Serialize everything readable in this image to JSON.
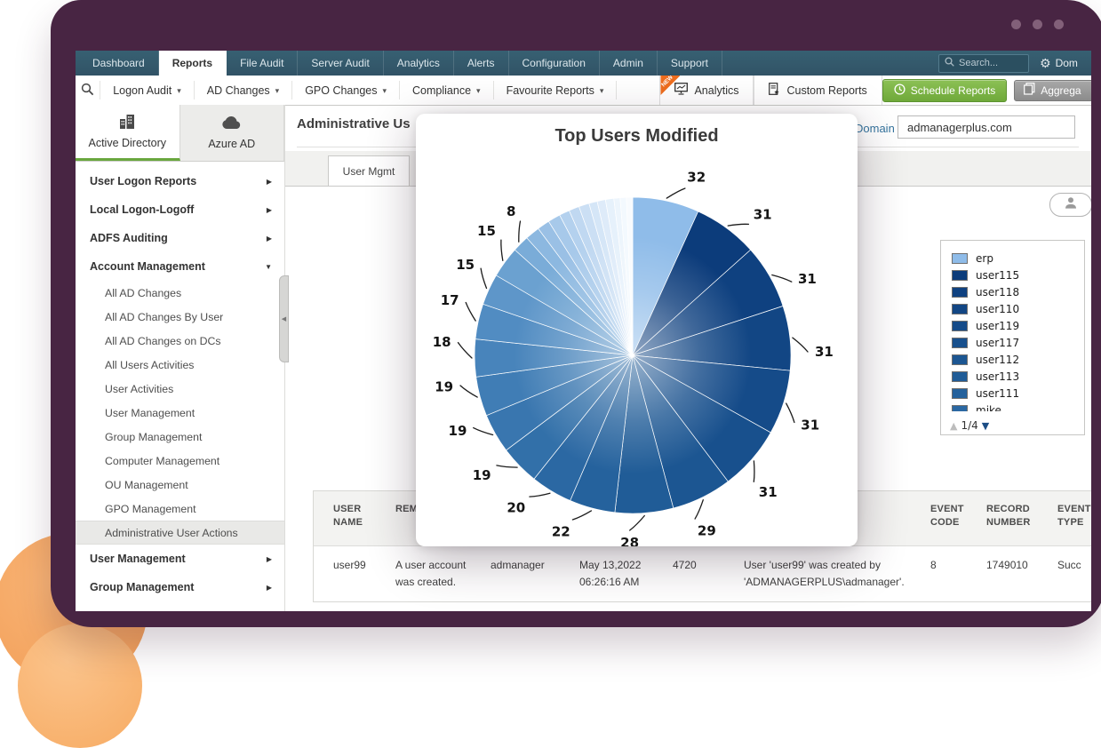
{
  "topnav": {
    "tabs": [
      "Dashboard",
      "Reports",
      "File Audit",
      "Server Audit",
      "Analytics",
      "Alerts",
      "Configuration",
      "Admin",
      "Support"
    ],
    "active_tab": "Reports",
    "search_placeholder": "Search...",
    "domain_settings_label": "Dom"
  },
  "toolbar": {
    "menus": [
      "Logon Audit",
      "AD Changes",
      "GPO Changes",
      "Compliance",
      "Favourite Reports"
    ],
    "analytics_label": "Analytics",
    "analytics_badge": "NEW",
    "custom_reports_label": "Custom Reports",
    "schedule_reports_label": "Schedule Reports",
    "aggregate_label": "Aggrega"
  },
  "sidebar": {
    "tabs": [
      {
        "label": "Active Directory",
        "active": true
      },
      {
        "label": "Azure AD",
        "active": false
      }
    ],
    "items": [
      {
        "label": "User Logon Reports",
        "type": "section",
        "arrow": "right"
      },
      {
        "label": "Local Logon-Logoff",
        "type": "section",
        "arrow": "right"
      },
      {
        "label": "ADFS Auditing",
        "type": "section",
        "arrow": "right"
      },
      {
        "label": "Account Management",
        "type": "section",
        "arrow": "down"
      },
      {
        "label": "All AD Changes",
        "type": "sub"
      },
      {
        "label": "All AD Changes By User",
        "type": "sub"
      },
      {
        "label": "All AD Changes on DCs",
        "type": "sub"
      },
      {
        "label": "All Users Activities",
        "type": "sub"
      },
      {
        "label": "User Activities",
        "type": "sub"
      },
      {
        "label": "User Management",
        "type": "sub"
      },
      {
        "label": "Group Management",
        "type": "sub"
      },
      {
        "label": "Computer Management",
        "type": "sub"
      },
      {
        "label": "OU Management",
        "type": "sub"
      },
      {
        "label": "GPO Management",
        "type": "sub"
      },
      {
        "label": "Administrative User Actions",
        "type": "sub",
        "active": true
      },
      {
        "label": "User Management",
        "type": "section",
        "arrow": "right"
      },
      {
        "label": "Group Management",
        "type": "section",
        "arrow": "right"
      }
    ]
  },
  "content": {
    "page_title": "Administrative Us",
    "domain_label": "Domain",
    "domain_value": "admanagerplus.com",
    "tab_label": "User Mgmt"
  },
  "legend": {
    "items": [
      {
        "name": "erp",
        "color": "#8FBCE9"
      },
      {
        "name": "user115",
        "color": "#0C3C7B"
      },
      {
        "name": "user118",
        "color": "#0F4180"
      },
      {
        "name": "user110",
        "color": "#124684"
      },
      {
        "name": "user119",
        "color": "#154B89"
      },
      {
        "name": "user117",
        "color": "#18508D"
      },
      {
        "name": "user112",
        "color": "#1C5692"
      },
      {
        "name": "user113",
        "color": "#205C97"
      },
      {
        "name": "user111",
        "color": "#25629D"
      },
      {
        "name": "mike",
        "color": "#2B68A3"
      }
    ],
    "page": "1/4"
  },
  "chart_data": {
    "type": "pie",
    "title": "Top Users Modified",
    "legend_position": "right-outside",
    "series": [
      {
        "name": "erp",
        "value": 32,
        "color": "#8FBCE9",
        "labeled": true
      },
      {
        "name": "user115",
        "value": 31,
        "color": "#0C3C7B",
        "labeled": true
      },
      {
        "name": "user118",
        "value": 31,
        "color": "#0F4180",
        "labeled": true
      },
      {
        "name": "user110",
        "value": 31,
        "color": "#124684",
        "labeled": true
      },
      {
        "name": "user119",
        "value": 31,
        "color": "#154B89",
        "labeled": true
      },
      {
        "name": "user117",
        "value": 31,
        "color": "#18508D",
        "labeled": true
      },
      {
        "name": "user112",
        "value": 29,
        "color": "#1C5692",
        "labeled": true
      },
      {
        "name": "user113",
        "value": 28,
        "color": "#205C97",
        "labeled": true
      },
      {
        "name": "user111",
        "value": 22,
        "color": "#25629D",
        "labeled": true
      },
      {
        "name": "mike",
        "value": 20,
        "color": "#2B68A3",
        "labeled": true
      },
      {
        "name": "",
        "value": 19,
        "color": "#3270A9",
        "labeled": true
      },
      {
        "name": "",
        "value": 19,
        "color": "#3976AF",
        "labeled": true
      },
      {
        "name": "",
        "value": 19,
        "color": "#407DB5",
        "labeled": true
      },
      {
        "name": "",
        "value": 18,
        "color": "#4884BB",
        "labeled": true
      },
      {
        "name": "",
        "value": 17,
        "color": "#518CC2",
        "labeled": true
      },
      {
        "name": "",
        "value": 15,
        "color": "#5E96C9",
        "labeled": true
      },
      {
        "name": "",
        "value": 15,
        "color": "#6BA1D0",
        "labeled": true
      },
      {
        "name": "",
        "value": 8,
        "color": "#7AACD8",
        "labeled": true
      },
      {
        "name": "",
        "value": 7,
        "color": "#8CB8E0",
        "labeled": false
      },
      {
        "name": "",
        "value": 6,
        "color": "#9AC0E5",
        "labeled": false
      },
      {
        "name": "",
        "value": 6,
        "color": "#A7C9EA",
        "labeled": false
      },
      {
        "name": "",
        "value": 5,
        "color": "#B4D1EE",
        "labeled": false
      },
      {
        "name": "",
        "value": 5,
        "color": "#C0D8F1",
        "labeled": false
      },
      {
        "name": "",
        "value": 5,
        "color": "#CBDFF4",
        "labeled": false
      },
      {
        "name": "",
        "value": 4,
        "color": "#D5E6F7",
        "labeled": false
      },
      {
        "name": "",
        "value": 4,
        "color": "#DEEBF9",
        "labeled": false
      },
      {
        "name": "",
        "value": 4,
        "color": "#E6F1FB",
        "labeled": false
      },
      {
        "name": "",
        "value": 3,
        "color": "#EDF5FC",
        "labeled": false
      },
      {
        "name": "",
        "value": 3,
        "color": "#F3F9FE",
        "labeled": false
      },
      {
        "name": "",
        "value": 3,
        "color": "#F8FBFE",
        "labeled": false
      }
    ]
  },
  "table": {
    "headers": [
      "USER NAME",
      "REM",
      "",
      "",
      "",
      "",
      "EVENT CODE",
      "RECORD NUMBER",
      "EVENT TYPE"
    ],
    "rows": [
      [
        "user99",
        "A user account was created.",
        "admanager",
        "May 13,2022 06:26:16 AM",
        "4720",
        "User 'user99' was created by 'ADMANAGERPLUS\\admanager'.",
        "8",
        "1749010",
        "Succ"
      ]
    ]
  }
}
